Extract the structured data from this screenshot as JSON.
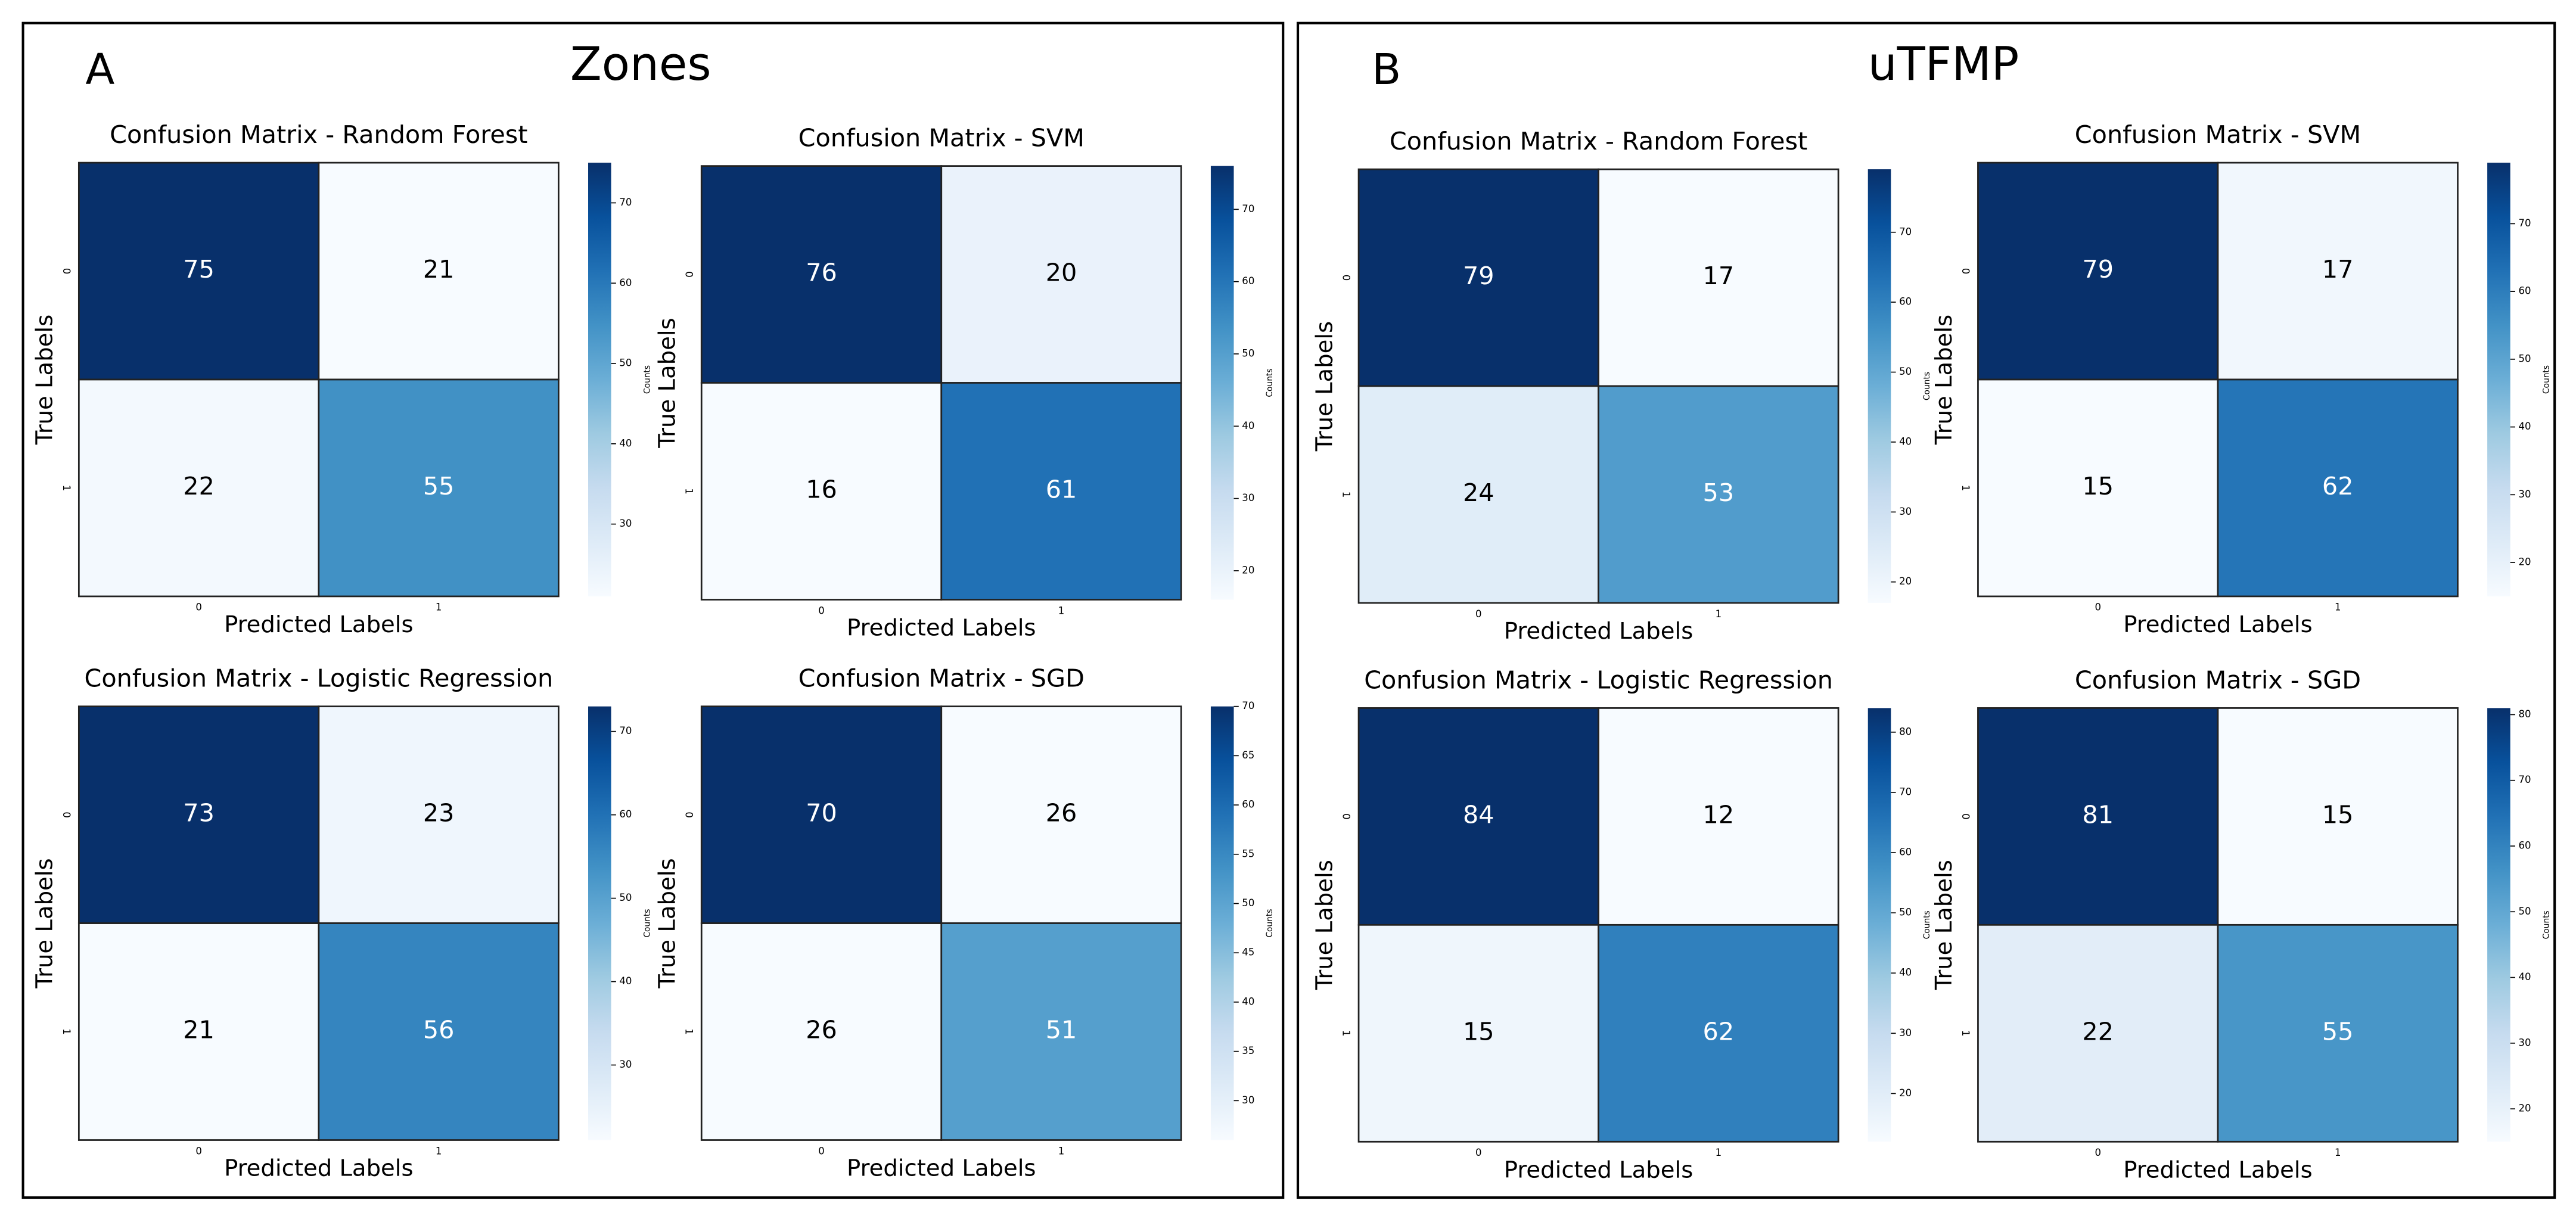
{
  "panels": [
    {
      "letter": "A",
      "title": "Zones"
    },
    {
      "letter": "B",
      "title": "uTFMP"
    }
  ],
  "chart_data": [
    {
      "type": "heatmap",
      "title": "Confusion Matrix - Random Forest",
      "x_label": "Predicted Labels",
      "y_label": "True Labels",
      "x_categories": [
        "0",
        "1"
      ],
      "y_categories": [
        "0",
        "1"
      ],
      "values": [
        [
          75,
          21
        ],
        [
          22,
          55
        ]
      ],
      "colormap": "Blues",
      "colorbar_label": "Counts",
      "clim": [
        21,
        75
      ],
      "cticks": [
        30,
        40,
        50,
        60,
        70
      ]
    },
    {
      "type": "heatmap",
      "title": "Confusion Matrix - SVM",
      "x_label": "Predicted Labels",
      "y_label": "True Labels",
      "x_categories": [
        "0",
        "1"
      ],
      "y_categories": [
        "0",
        "1"
      ],
      "values": [
        [
          76,
          20
        ],
        [
          16,
          61
        ]
      ],
      "colormap": "Blues",
      "colorbar_label": "Counts",
      "clim": [
        16,
        76
      ],
      "cticks": [
        20,
        30,
        40,
        50,
        60,
        70
      ]
    },
    {
      "type": "heatmap",
      "title": "Confusion Matrix - Logistic Regression",
      "x_label": "Predicted Labels",
      "y_label": "True Labels",
      "x_categories": [
        "0",
        "1"
      ],
      "y_categories": [
        "0",
        "1"
      ],
      "values": [
        [
          73,
          23
        ],
        [
          21,
          56
        ]
      ],
      "colormap": "Blues",
      "colorbar_label": "Counts",
      "clim": [
        21,
        73
      ],
      "cticks": [
        30,
        40,
        50,
        60,
        70
      ]
    },
    {
      "type": "heatmap",
      "title": "Confusion Matrix - SGD",
      "x_label": "Predicted Labels",
      "y_label": "True Labels",
      "x_categories": [
        "0",
        "1"
      ],
      "y_categories": [
        "0",
        "1"
      ],
      "values": [
        [
          70,
          26
        ],
        [
          26,
          51
        ]
      ],
      "colormap": "Blues",
      "colorbar_label": "Counts",
      "clim": [
        26,
        70
      ],
      "cticks": [
        30,
        35,
        40,
        45,
        50,
        55,
        60,
        65,
        70
      ]
    },
    {
      "type": "heatmap",
      "title": "Confusion Matrix - Random Forest",
      "x_label": "Predicted Labels",
      "y_label": "True Labels",
      "x_categories": [
        "0",
        "1"
      ],
      "y_categories": [
        "0",
        "1"
      ],
      "values": [
        [
          79,
          17
        ],
        [
          24,
          53
        ]
      ],
      "colormap": "Blues",
      "colorbar_label": "Counts",
      "clim": [
        17,
        79
      ],
      "cticks": [
        20,
        30,
        40,
        50,
        60,
        70
      ]
    },
    {
      "type": "heatmap",
      "title": "Confusion Matrix - SVM",
      "x_label": "Predicted Labels",
      "y_label": "True Labels",
      "x_categories": [
        "0",
        "1"
      ],
      "y_categories": [
        "0",
        "1"
      ],
      "values": [
        [
          79,
          17
        ],
        [
          15,
          62
        ]
      ],
      "colormap": "Blues",
      "colorbar_label": "Counts",
      "clim": [
        15,
        79
      ],
      "cticks": [
        20,
        30,
        40,
        50,
        60,
        70
      ]
    },
    {
      "type": "heatmap",
      "title": "Confusion Matrix - Logistic Regression",
      "x_label": "Predicted Labels",
      "y_label": "True Labels",
      "x_categories": [
        "0",
        "1"
      ],
      "y_categories": [
        "0",
        "1"
      ],
      "values": [
        [
          84,
          12
        ],
        [
          15,
          62
        ]
      ],
      "colormap": "Blues",
      "colorbar_label": "Counts",
      "clim": [
        12,
        84
      ],
      "cticks": [
        20,
        30,
        40,
        50,
        60,
        70,
        80
      ]
    },
    {
      "type": "heatmap",
      "title": "Confusion Matrix - SGD",
      "x_label": "Predicted Labels",
      "y_label": "True Labels",
      "x_categories": [
        "0",
        "1"
      ],
      "y_categories": [
        "0",
        "1"
      ],
      "values": [
        [
          81,
          15
        ],
        [
          22,
          55
        ]
      ],
      "colormap": "Blues",
      "colorbar_label": "Counts",
      "clim": [
        15,
        81
      ],
      "cticks": [
        20,
        30,
        40,
        50,
        60,
        70,
        80
      ]
    }
  ]
}
